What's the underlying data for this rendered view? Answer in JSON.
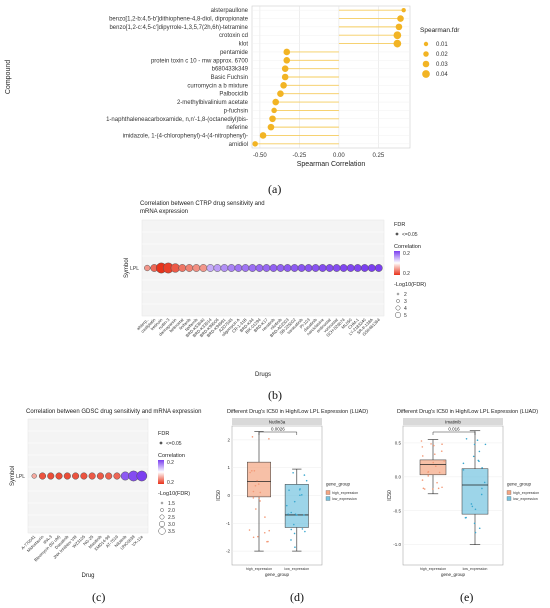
{
  "captions": {
    "a": "(a)",
    "b": "(b)",
    "c": "(c)",
    "d": "(d)",
    "e": "(e)"
  },
  "colors": {
    "lollipop": "#f2b424",
    "lollipop_line": "#f5cc5e",
    "fdr_neg": "#e8321a",
    "fdr_pos": "#7b3ff0",
    "box_high": "#f4a582",
    "box_low": "#74c3e0"
  },
  "chart_data": [
    {
      "type": "scatter",
      "title": "",
      "xlabel": "Spearman Correlation",
      "ylabel": "Compound",
      "xlim": [
        -0.55,
        0.45
      ],
      "xticks": [
        "-0.50",
        "-0.25",
        "0.00",
        "0.25"
      ],
      "xtick_values": [
        -0.5,
        -0.25,
        0.0,
        0.25
      ],
      "legend": {
        "title": "Spearman.fdr",
        "placement": "right",
        "labels": [
          "0.01",
          "0.02",
          "0.03",
          "0.04"
        ],
        "sizes": [
          2,
          3,
          4,
          5
        ]
      },
      "categories": [
        "alsterpaullone",
        "benzo[1,2-b:4,5-b']dithiophene-4,8-diol, dipropionate",
        "benzo[1,2-c:4,5-c']dipyrrole-1,3,5,7(2h,6h)-tetramine",
        "crotoxin cd",
        "klot",
        "pentamide",
        "protein toxin c 10 - mw approx. 6700",
        "b680433k349",
        "Basic Fuchsin",
        "curromycin a b mixture",
        "Palbociclib",
        "2-methylbivalinium acetate",
        "p-fuchsin",
        "1-naphthaleneacarboxamide, n,n'-1,8-(octanediyl)bis-",
        "neferine",
        "imidazole, 1-(4-chlorophenyl)-4-(4-nitrophenyl)-",
        "arnidiol"
      ],
      "values": [
        0.41,
        0.39,
        0.38,
        0.37,
        0.37,
        -0.33,
        -0.33,
        -0.34,
        -0.34,
        -0.35,
        -0.37,
        -0.4,
        -0.41,
        -0.42,
        -0.43,
        -0.48,
        -0.53
      ],
      "fdr_size": [
        2,
        4,
        4,
        5,
        5,
        4,
        4,
        4,
        4,
        4,
        4,
        4,
        3,
        4,
        4,
        4,
        3
      ]
    },
    {
      "type": "scatter",
      "title": "Correlation between CTRP drug sensitivity and mRNA expression",
      "xlabel": "Drugs",
      "ylabel": "Symbol",
      "row_label": "LPL",
      "legend": {
        "fdr_title": "FDR",
        "fdr_label": "<=0.05",
        "corr_title": "Correlation",
        "corr_max": "0.2",
        "corr_min": "0.2",
        "size_title": "-Log10(FDR)",
        "size_labels": [
          "2",
          "3",
          "4",
          "5"
        ]
      },
      "categories": [
        "alsterp..",
        "oxaliplatin",
        "tretinoin",
        "nutlin-3",
        "darinaparsin",
        "belinostat",
        "linifanib",
        "tipifarnib",
        "BRD-K53640",
        "BRD-K33514",
        "BRD-K99006",
        "BRD-K94991",
        "AZD7545",
        "oligomycin A",
        "CR-1-31B",
        "BRD-K44",
        "BIX-01294",
        "BRD-K17",
        "neratinib",
        "nilotinib",
        "BRD-A02303",
        "SB-225002",
        "saracatinib",
        "PI-103",
        "dasatinib",
        "narciclasine",
        "entinostat",
        "vorinostat",
        "SCH-529074",
        "ML050",
        "CHM-1",
        "LY-2183240",
        "SR-II-138A",
        "GSK461364"
      ],
      "values": [
        -0.05,
        -0.12,
        -0.2,
        -0.18,
        -0.14,
        -0.1,
        -0.08,
        -0.06,
        -0.05,
        0.04,
        0.06,
        0.08,
        0.1,
        0.12,
        0.12,
        0.13,
        0.14,
        0.14,
        0.15,
        0.15,
        0.16,
        0.16,
        0.17,
        0.17,
        0.17,
        0.18,
        0.18,
        0.18,
        0.19,
        0.19,
        0.19,
        0.2,
        0.2,
        0.2
      ],
      "sizes": [
        2,
        3,
        5,
        5,
        4,
        3,
        3,
        3,
        3,
        3,
        3,
        3,
        3,
        3,
        3,
        3,
        3,
        3,
        3,
        3,
        3,
        3,
        3,
        3,
        3,
        3,
        3,
        3,
        3,
        3,
        3,
        3,
        3,
        3
      ]
    },
    {
      "type": "scatter",
      "title": "Correlation between GDSC drug sensitivity and mRNA expression",
      "xlabel": "Drug",
      "ylabel": "Symbol",
      "row_label": "LPL",
      "legend": {
        "fdr_title": "FDR",
        "fdr_label": "<=0.05",
        "corr_title": "Correlation",
        "corr_max": "0.2",
        "corr_min": "0.2",
        "size_title": "-Log10(FDR)",
        "size_labels": [
          "1.5",
          "2.0",
          "2.5",
          "3.0",
          "3.5"
        ]
      },
      "categories": [
        "A-770041",
        "Midostaurin",
        "IPA-3",
        "Bleomycin (50 uM)",
        "Dasatinib",
        "JNK Inhibitor VIII",
        "WZ3105",
        "NG-25",
        "Masitinib",
        "XMD14-99",
        "AT-7519",
        "Nilotinib",
        "UNC0638",
        "VX-11e"
      ],
      "values": [
        -0.02,
        -0.15,
        -0.16,
        -0.16,
        -0.16,
        -0.15,
        -0.15,
        -0.14,
        -0.14,
        -0.13,
        -0.12,
        0.16,
        0.18,
        0.2
      ],
      "sizes": [
        1,
        2,
        2,
        2,
        2,
        2,
        2,
        2,
        2,
        2,
        2,
        3,
        4,
        4
      ]
    },
    {
      "type": "box",
      "title": "Different Drug's IC50 in High/Low LPL Expression (LUAD)",
      "facet": "Nutlin3a",
      "pvalue": "0.0026",
      "xlabel": "gene_group",
      "ylabel": "IC50",
      "categories": [
        "high_expression",
        "low_expression"
      ],
      "legend": {
        "title": "gene_group",
        "labels": [
          "high_expression",
          "low_expression"
        ]
      },
      "ylim": [
        -2.5,
        2.5
      ],
      "yticks": [
        "2",
        "1",
        "0",
        "-1",
        "-2"
      ],
      "ytick_values": [
        2,
        1,
        0,
        -1,
        -2
      ],
      "boxes": [
        {
          "min": -2.0,
          "q1": -0.05,
          "median": 0.5,
          "q3": 1.2,
          "max": 2.3
        },
        {
          "min": -2.0,
          "q1": -1.15,
          "median": -0.7,
          "q3": 0.4,
          "max": 0.95
        }
      ]
    },
    {
      "type": "box",
      "title": "Different Drug's IC50 in High/Low LPL Expression (LUAD)",
      "facet": "Imatinib",
      "pvalue": "0.016",
      "xlabel": "gene_group",
      "ylabel": "IC50",
      "categories": [
        "high_expression",
        "low_expression"
      ],
      "legend": {
        "title": "gene_group",
        "labels": [
          "high_expression",
          "low_expression"
        ]
      },
      "ylim": [
        -1.3,
        0.75
      ],
      "yticks": [
        "0.5",
        "0.0",
        "-0.5",
        "-1.0"
      ],
      "ytick_values": [
        0.5,
        0.0,
        -0.5,
        -1.0
      ],
      "boxes": [
        {
          "min": -0.25,
          "q1": 0.03,
          "median": 0.18,
          "q3": 0.25,
          "max": 0.55
        },
        {
          "min": -1.0,
          "q1": -0.55,
          "median": -0.12,
          "q3": 0.12,
          "max": 0.68
        }
      ]
    }
  ]
}
